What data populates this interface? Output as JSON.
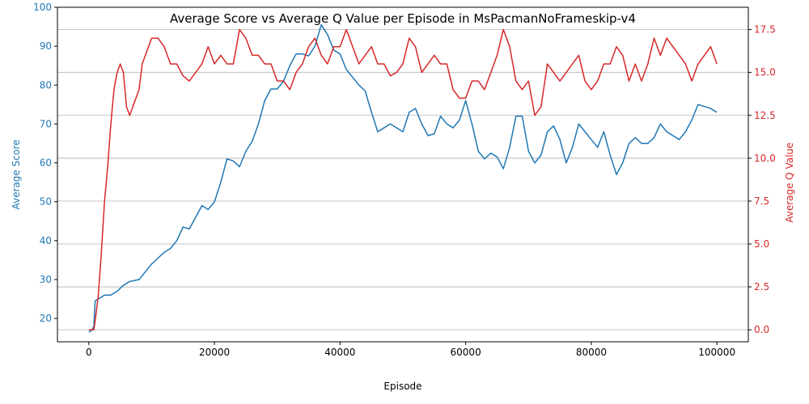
{
  "chart_data": {
    "type": "line",
    "title": "Average Score vs Average Q Value per Episode in MsPacmanNoFrameskip-v4",
    "xlabel": "Episode",
    "ylabel": "Average Score",
    "ylabel_right": "Average Q Value",
    "xlim": [
      -5000,
      105000
    ],
    "ylim": [
      14,
      100
    ],
    "ylim_right": [
      -0.7,
      18.8
    ],
    "x_ticks": [
      0,
      20000,
      40000,
      60000,
      80000,
      100000
    ],
    "x_tick_labels": [
      "0",
      "20000",
      "40000",
      "60000",
      "80000",
      "100000"
    ],
    "y_ticks": [
      20,
      30,
      40,
      50,
      60,
      70,
      80,
      90,
      100
    ],
    "y_tick_labels": [
      "20",
      "30",
      "40",
      "50",
      "60",
      "70",
      "80",
      "90",
      "100"
    ],
    "y_ticks_right": [
      0,
      2.5,
      5,
      7.5,
      10,
      12.5,
      15,
      17.5
    ],
    "y_tick_labels_right": [
      "0.0",
      "2.5",
      "5.0",
      "7.5",
      "10.0",
      "12.5",
      "15.0",
      "17.5"
    ],
    "grid": "horizontal, right axis",
    "colors": {
      "score": "#1f77b4",
      "q": "#d62728",
      "grid": "#b0b0b0",
      "axis": "#000000"
    },
    "series": [
      {
        "axis": "left",
        "color": "#1f77b4",
        "x": [
          0,
          500,
          800,
          1000,
          1500,
          2500,
          3500,
          4500,
          5500,
          6500,
          8000,
          9000,
          10000,
          11000,
          12000,
          13000,
          14000,
          15000,
          16000,
          17000,
          18000,
          19000,
          20000,
          21000,
          22000,
          23000,
          24000,
          25000,
          26000,
          27000,
          28000,
          29000,
          30000,
          31000,
          32000,
          33000,
          34000,
          35000,
          36000,
          37000,
          38000,
          39000,
          40000,
          41000,
          42000,
          43000,
          44000,
          45000,
          46000,
          47000,
          48000,
          49000,
          50000,
          51000,
          52000,
          53000,
          54000,
          55000,
          56000,
          57000,
          58000,
          59000,
          60000,
          61000,
          62000,
          63000,
          64000,
          65000,
          66000,
          67000,
          68000,
          69000,
          70000,
          71000,
          72000,
          73000,
          74000,
          75000,
          76000,
          77000,
          78000,
          79000,
          80000,
          81000,
          82000,
          83000,
          84000,
          85000,
          86000,
          87000,
          88000,
          89000,
          90000,
          91000,
          92000,
          93000,
          94000,
          95000,
          96000,
          97000,
          98000,
          99000,
          100000
        ],
        "values": [
          16.5,
          17,
          18,
          24.5,
          25,
          26,
          26,
          27,
          28.5,
          29.5,
          30,
          32,
          34,
          35.5,
          37,
          38,
          40,
          43.5,
          43,
          46,
          49,
          48,
          50,
          55,
          61,
          60.5,
          59,
          63,
          65.5,
          70,
          76,
          79,
          79,
          81,
          85,
          88,
          88,
          87.5,
          90,
          95.5,
          93,
          89,
          88,
          84,
          82,
          80,
          78.5,
          73,
          68,
          69,
          70,
          69,
          68,
          73,
          74,
          70,
          67,
          67.5,
          72,
          70,
          69,
          71,
          76,
          70,
          63,
          61,
          62.5,
          61.5,
          58.5,
          64,
          72,
          72,
          63,
          60,
          62,
          68,
          69.5,
          66,
          60,
          64,
          70,
          68,
          66,
          64,
          68,
          62,
          57,
          60,
          65,
          66.5,
          65,
          65,
          66.5,
          70,
          68,
          67,
          66,
          68,
          71,
          75,
          74.5,
          74,
          73
        ]
      },
      {
        "axis": "right",
        "color": "#d62728",
        "x": [
          0,
          800,
          1000,
          1500,
          2000,
          2500,
          3000,
          3500,
          4000,
          4500,
          5000,
          5500,
          6000,
          6500,
          7000,
          7500,
          8000,
          8500,
          9000,
          9500,
          10000,
          11000,
          12000,
          13000,
          14000,
          15000,
          16000,
          17000,
          18000,
          19000,
          20000,
          21000,
          22000,
          23000,
          24000,
          25000,
          26000,
          27000,
          28000,
          29000,
          30000,
          31000,
          32000,
          33000,
          34000,
          35000,
          36000,
          37000,
          38000,
          39000,
          40000,
          41000,
          42000,
          43000,
          44000,
          45000,
          46000,
          47000,
          48000,
          49000,
          50000,
          51000,
          52000,
          53000,
          54000,
          55000,
          56000,
          57000,
          58000,
          59000,
          60000,
          61000,
          62000,
          63000,
          64000,
          65000,
          66000,
          67000,
          68000,
          69000,
          70000,
          71000,
          72000,
          73000,
          74000,
          75000,
          76000,
          77000,
          78000,
          79000,
          80000,
          81000,
          82000,
          83000,
          84000,
          85000,
          86000,
          87000,
          88000,
          89000,
          90000,
          91000,
          92000,
          93000,
          94000,
          95000,
          96000,
          97000,
          98000,
          99000,
          99500,
          100000
        ],
        "values": [
          0,
          0,
          0.5,
          2,
          4.5,
          7.5,
          9.5,
          12,
          14,
          15,
          15.5,
          15,
          13,
          12.5,
          13,
          13.5,
          14,
          15.5,
          16,
          16.5,
          17,
          17,
          16.5,
          15.5,
          15.5,
          14.8,
          14.5,
          15,
          15.5,
          16.5,
          15.5,
          16,
          15.5,
          15.5,
          17.5,
          17,
          16,
          16,
          15.5,
          15.5,
          14.5,
          14.5,
          14,
          15,
          15.5,
          16.5,
          17,
          16,
          15.5,
          16.5,
          16.5,
          17.5,
          16.5,
          15.5,
          16,
          16.5,
          15.5,
          15.5,
          14.8,
          15,
          15.5,
          17,
          16.5,
          15,
          15.5,
          16,
          15.5,
          15.5,
          14,
          13.5,
          13.5,
          14.5,
          14.5,
          14,
          15,
          16,
          17.5,
          16.5,
          14.5,
          14,
          14.5,
          12.5,
          13,
          15.5,
          15,
          14.5,
          15,
          15.5,
          16,
          14.5,
          14,
          14.5,
          15.5,
          15.5,
          16.5,
          16,
          14.5,
          15.5,
          14.5,
          15.5,
          17,
          16,
          17,
          16.5,
          16,
          15.5,
          14.5,
          15.5,
          16,
          16.5,
          16,
          15.5
        ]
      }
    ]
  }
}
